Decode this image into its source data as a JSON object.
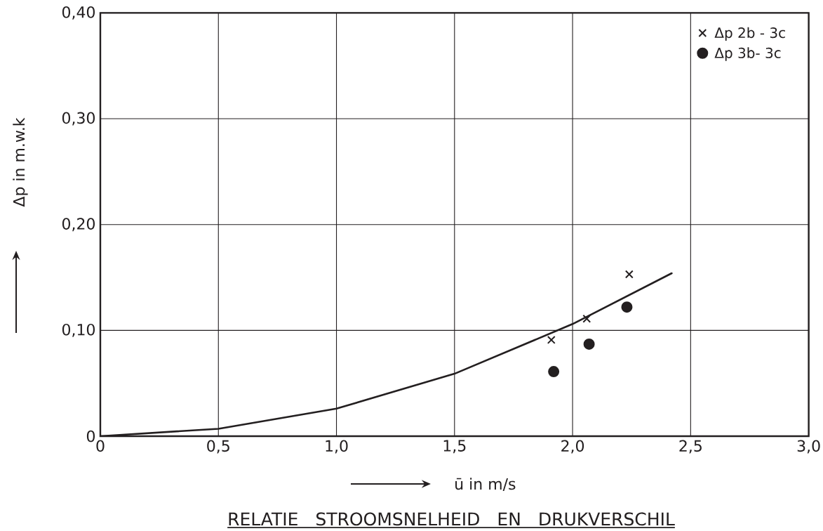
{
  "chart_data": {
    "type": "scatter",
    "title": "RELATIE STROOMSNELHEID EN DRUKVERSCHIL",
    "xlabel": "ū in m/s",
    "ylabel": "Δp in m.w.k",
    "series": [
      {
        "name": "Δp 2b - 3c",
        "type": "scatter",
        "marker": "cross",
        "color": "#231f20",
        "x": [
          1.91,
          2.06,
          2.24
        ],
        "values": [
          0.091,
          0.111,
          0.153
        ]
      },
      {
        "name": "Δp 3b- 3c",
        "type": "scatter",
        "marker": "circle",
        "color": "#231f20",
        "x": [
          1.92,
          2.07,
          2.23
        ],
        "values": [
          0.061,
          0.087,
          0.122
        ]
      },
      {
        "type": "line",
        "color": "#231f20",
        "x": [
          0,
          0.5,
          1.0,
          1.5,
          2.0,
          2.42
        ],
        "values": [
          0,
          0.007,
          0.026,
          0.059,
          0.106,
          0.154
        ]
      }
    ],
    "xlim": [
      0,
      3.0
    ],
    "ylim": [
      0,
      0.4
    ],
    "xticks": [
      0,
      {
        "value": 0.5,
        "label": "0,5"
      },
      {
        "value": 1.0,
        "label": "1,0"
      },
      {
        "value": 1.5,
        "label": "1,5"
      },
      {
        "value": 2.0,
        "label": "2,0"
      },
      {
        "value": 2.5,
        "label": "2,5"
      },
      {
        "value": 3.0,
        "label": "3,0"
      }
    ],
    "yticks": [
      0,
      {
        "value": 0.1,
        "label": "0,10"
      },
      {
        "value": 0.2,
        "label": "0,20"
      },
      {
        "value": 0.3,
        "label": "0,30"
      },
      {
        "value": 0.4,
        "label": "0,40"
      }
    ],
    "grid": true,
    "legend": "top right"
  }
}
